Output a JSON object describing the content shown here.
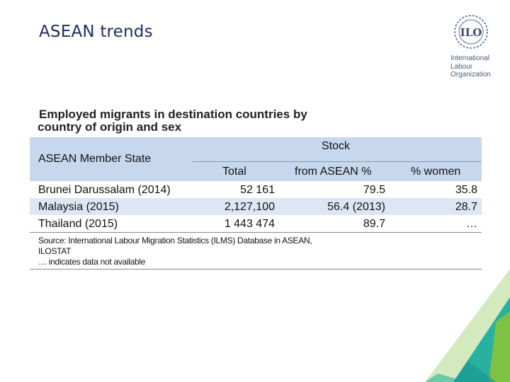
{
  "slide": {
    "title": "ASEAN trends"
  },
  "logo": {
    "letters": "ILO",
    "lines": [
      "International",
      "Labour",
      "Organization"
    ]
  },
  "table": {
    "title_line1": "Employed migrants in destination countries by",
    "title_line2": "country of origin and sex",
    "header": {
      "state": "ASEAN Member State",
      "group": "Stock",
      "total": "Total",
      "from_asean": "from ASEAN %",
      "women": "% women"
    },
    "rows": [
      {
        "state": "Brunei Darussalam  (2014)",
        "total": "52 161",
        "from_asean": "79.5",
        "women": "35.8"
      },
      {
        "state": "Malaysia (2015)",
        "total": "2,127,100",
        "from_asean": "56.4 (2013)",
        "women": "28.7"
      },
      {
        "state": "Thailand  (2015)",
        "total": "1 443 474",
        "from_asean": "89.7",
        "women": "…"
      }
    ],
    "note": {
      "source": "Source: International Labour Migration Statistics (ILMS) Database in ASEAN,",
      "source2": "ILOSTAT",
      "na": "… indicates data not available"
    }
  },
  "colors": {
    "header_bg": "#c7d7ee",
    "shade": "#dde6f4",
    "green": "#7dc242",
    "teal": "#0aa79b",
    "navy": "#1f2d5c"
  }
}
